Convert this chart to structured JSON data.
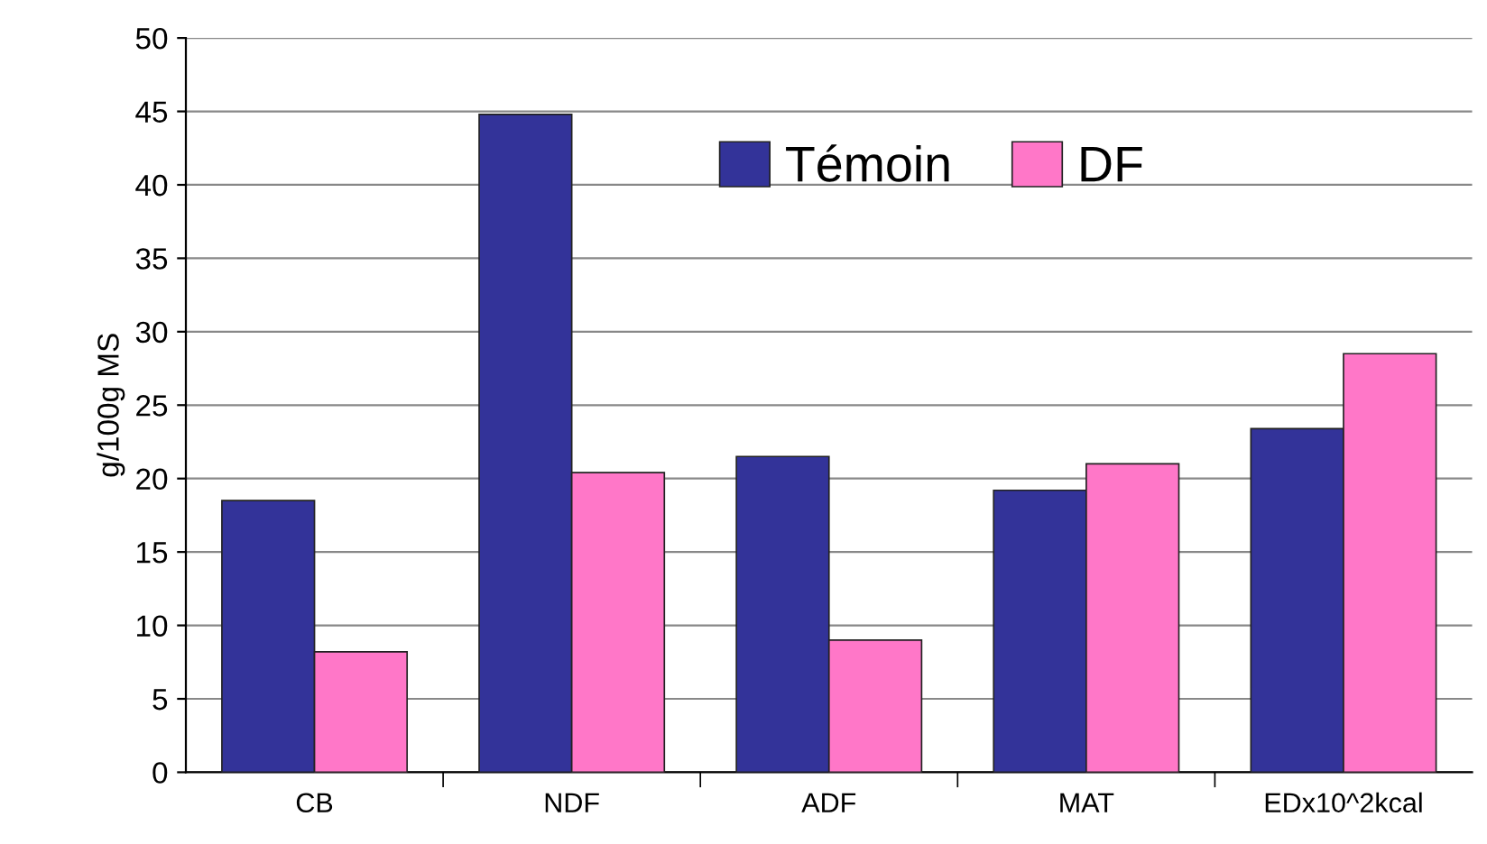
{
  "chart_data": {
    "type": "bar",
    "ylabel": "g/100g MS",
    "categories": [
      "CB",
      "NDF",
      "ADF",
      "MAT",
      "EDx10^2kcal"
    ],
    "series": [
      {
        "name": "Témoin",
        "color": "#333399",
        "values": [
          18.5,
          44.8,
          21.5,
          19.2,
          23.4
        ]
      },
      {
        "name": "DF",
        "color": "#ff77c8",
        "values": [
          8.2,
          20.4,
          9.0,
          21.0,
          28.5
        ]
      }
    ],
    "ylim": [
      0,
      50
    ],
    "yticks": [
      0,
      5,
      10,
      15,
      20,
      25,
      30,
      35,
      40,
      45,
      50
    ],
    "grid": "y",
    "legend": "top"
  }
}
